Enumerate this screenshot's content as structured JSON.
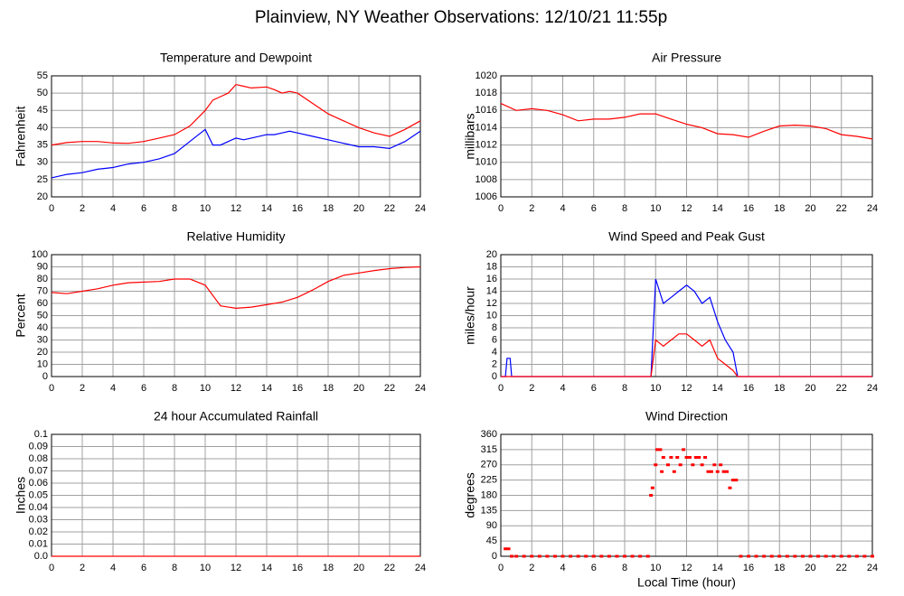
{
  "title": "Plainview, NY Weather Observations: 12/10/21 11:55p",
  "chart_data": [
    {
      "type": "line",
      "title": "Temperature and Dewpoint",
      "ylabel": "Fahrenheit",
      "x": [
        0,
        1,
        2,
        3,
        4,
        5,
        6,
        7,
        8,
        9,
        10,
        10.5,
        11,
        11.5,
        12,
        12.5,
        13,
        14,
        14.5,
        15,
        15.5,
        16,
        17,
        18,
        19,
        20,
        21,
        22,
        23,
        24
      ],
      "series": [
        {
          "color": "#ff0000",
          "values": [
            35,
            35.7,
            36,
            36,
            35.6,
            35.5,
            36,
            37,
            38,
            40.5,
            45,
            48,
            49,
            50,
            52.5,
            52,
            51.5,
            51.8,
            51,
            50,
            50.5,
            50,
            47,
            44,
            42,
            40,
            38.5,
            37.5,
            39.5,
            42
          ]
        },
        {
          "color": "#0000ff",
          "values": [
            25.5,
            26.5,
            27,
            28,
            28.5,
            29.5,
            30,
            31,
            32.5,
            36,
            39.5,
            35,
            35,
            36,
            37,
            36.5,
            37,
            38,
            38,
            38.5,
            39,
            38.5,
            37.5,
            36.5,
            35.5,
            34.5,
            34.5,
            34,
            36,
            39
          ]
        }
      ],
      "xlim": [
        0,
        24
      ],
      "xticks": [
        0,
        2,
        4,
        6,
        8,
        10,
        12,
        14,
        16,
        18,
        20,
        22,
        24
      ],
      "ylim": [
        20,
        55
      ],
      "yticks": [
        20,
        25,
        30,
        35,
        40,
        45,
        50,
        55
      ],
      "grid": true
    },
    {
      "type": "line",
      "title": "Air Pressure",
      "ylabel": "millibars",
      "x": [
        0,
        1,
        2,
        3,
        4,
        5,
        6,
        7,
        8,
        9,
        10,
        11,
        12,
        13,
        14,
        15,
        16,
        17,
        18,
        19,
        20,
        21,
        22,
        23,
        24
      ],
      "series": [
        {
          "color": "#ff0000",
          "values": [
            1016.8,
            1016,
            1016.2,
            1016,
            1015.5,
            1014.8,
            1015,
            1015,
            1015.2,
            1015.6,
            1015.6,
            1015,
            1014.4,
            1014,
            1013.3,
            1013.2,
            1012.9,
            1013.6,
            1014.2,
            1014.3,
            1014.2,
            1013.9,
            1013.2,
            1013,
            1012.7
          ]
        }
      ],
      "xlim": [
        0,
        24
      ],
      "xticks": [
        0,
        2,
        4,
        6,
        8,
        10,
        12,
        14,
        16,
        18,
        20,
        22,
        24
      ],
      "ylim": [
        1006,
        1020
      ],
      "yticks": [
        1006,
        1008,
        1010,
        1012,
        1014,
        1016,
        1018,
        1020
      ],
      "grid": true
    },
    {
      "type": "line",
      "title": "Relative Humidity",
      "ylabel": "Percent",
      "x": [
        0,
        1,
        2,
        3,
        4,
        5,
        6,
        7,
        8,
        9,
        10,
        11,
        12,
        13,
        14,
        15,
        16,
        17,
        18,
        19,
        20,
        21,
        22,
        23,
        24
      ],
      "series": [
        {
          "color": "#ff0000",
          "values": [
            69,
            68,
            70,
            72,
            75,
            77,
            77.5,
            78,
            80,
            80,
            75,
            58,
            56,
            57,
            59,
            61,
            65,
            71,
            78,
            83,
            85,
            87,
            88.5,
            89.5,
            90
          ]
        }
      ],
      "xlim": [
        0,
        24
      ],
      "xticks": [
        0,
        2,
        4,
        6,
        8,
        10,
        12,
        14,
        16,
        18,
        20,
        22,
        24
      ],
      "ylim": [
        0,
        100
      ],
      "yticks": [
        0,
        10,
        20,
        30,
        40,
        50,
        60,
        70,
        80,
        90,
        100
      ],
      "grid": true
    },
    {
      "type": "line",
      "title": "Wind Speed and Peak Gust",
      "ylabel": "miles/hour",
      "x": [
        0,
        0.3,
        0.4,
        0.6,
        0.7,
        9.5,
        9.7,
        10,
        10.5,
        11,
        11.5,
        12,
        12.5,
        13,
        13.5,
        14,
        14.5,
        15,
        15.3,
        24
      ],
      "series": [
        {
          "color": "#0000ff",
          "values": [
            0,
            0,
            3,
            3,
            0,
            0,
            0,
            16,
            12,
            13,
            14,
            15,
            14,
            12,
            13,
            9,
            6,
            4,
            0,
            0
          ]
        },
        {
          "color": "#ff0000",
          "values": [
            0,
            0,
            0,
            0,
            0,
            0,
            0,
            6,
            5,
            6,
            7,
            7,
            6,
            5,
            6,
            3,
            2,
            1,
            0,
            0
          ]
        }
      ],
      "xlim": [
        0,
        24
      ],
      "xticks": [
        0,
        2,
        4,
        6,
        8,
        10,
        12,
        14,
        16,
        18,
        20,
        22,
        24
      ],
      "ylim": [
        0,
        20
      ],
      "yticks": [
        0,
        2,
        4,
        6,
        8,
        10,
        12,
        14,
        16,
        18,
        20
      ],
      "grid": true
    },
    {
      "type": "line",
      "title": "24 hour Accumulated Rainfall",
      "ylabel": "Inches",
      "x": [
        0,
        24
      ],
      "series": [
        {
          "color": "#ff0000",
          "values": [
            0,
            0
          ]
        }
      ],
      "xlim": [
        0,
        24
      ],
      "xticks": [
        0,
        2,
        4,
        6,
        8,
        10,
        12,
        14,
        16,
        18,
        20,
        22,
        24
      ],
      "ylim": [
        0,
        0.1
      ],
      "yticks": [
        {
          "value": 0,
          "label": "0.0"
        },
        0.01,
        0.02,
        0.03,
        0.04,
        0.05,
        0.06,
        0.07,
        0.08,
        0.09,
        0.1
      ],
      "grid": true
    },
    {
      "type": "scatter",
      "title": "Wind Direction",
      "ylabel": "degrees",
      "xlabel": "Local Time (hour)",
      "x": [
        0.3,
        0.5,
        0.7,
        1,
        1.5,
        2,
        2.5,
        3,
        3.5,
        4,
        4.5,
        5,
        5.5,
        6,
        6.5,
        7,
        7.5,
        8,
        8.5,
        9,
        9.5,
        9.7,
        9.8,
        10,
        10.1,
        10.3,
        10.4,
        10.5,
        10.8,
        11,
        11.2,
        11.4,
        11.6,
        11.8,
        12,
        12.2,
        12.4,
        12.6,
        12.8,
        13,
        13.2,
        13.4,
        13.6,
        13.8,
        14,
        14.2,
        14.4,
        14.6,
        14.8,
        15,
        15.2,
        15.5,
        16,
        16.5,
        17,
        17.5,
        18,
        18.5,
        19,
        19.5,
        20,
        20.5,
        21,
        21.5,
        22,
        22.5,
        23,
        23.5,
        24
      ],
      "series": [
        {
          "color": "#ff0000",
          "values": [
            22,
            22,
            0,
            0,
            0,
            0,
            0,
            0,
            0,
            0,
            0,
            0,
            0,
            0,
            0,
            0,
            0,
            0,
            0,
            0,
            0,
            180,
            202,
            270,
            315,
            315,
            250,
            292,
            270,
            292,
            250,
            292,
            270,
            315,
            292,
            292,
            270,
            292,
            292,
            270,
            292,
            250,
            250,
            270,
            250,
            270,
            250,
            250,
            202,
            225,
            225,
            0,
            0,
            0,
            0,
            0,
            0,
            0,
            0,
            0,
            0,
            0,
            0,
            0,
            0,
            0,
            0,
            0,
            0
          ]
        }
      ],
      "xlim": [
        0,
        24
      ],
      "xticks": [
        0,
        2,
        4,
        6,
        8,
        10,
        12,
        14,
        16,
        18,
        20,
        22,
        24
      ],
      "ylim": [
        0,
        360
      ],
      "yticks": [
        0,
        45,
        90,
        135,
        180,
        225,
        270,
        315,
        360
      ],
      "grid": true
    }
  ]
}
